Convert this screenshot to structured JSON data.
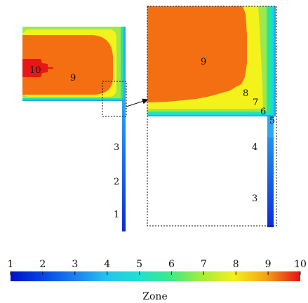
{
  "colors": {
    "z1": "#0a1fd2",
    "z2": "#0b55e6",
    "z3": "#1e7ce8",
    "z4": "#2aa9f2",
    "z5": "#16d9e6",
    "z6": "#23e79f",
    "z7": "#9fe84a",
    "z8": "#f4f21b",
    "z9": "#f5870f",
    "z10": "#e71717",
    "orange_core": "#f36f12"
  },
  "left_panel": {
    "labels": {
      "z10": "10",
      "z9": "9",
      "z3": "3",
      "z2": "2",
      "z1": "1"
    }
  },
  "right_panel": {
    "labels": {
      "z9": "9",
      "z8": "8",
      "z7": "7",
      "z6": "6",
      "z5": "5",
      "z4": "4",
      "z3": "3"
    }
  },
  "colorbar": {
    "ticks": [
      "1",
      "2",
      "3",
      "4",
      "5",
      "6",
      "7",
      "8",
      "9",
      "10"
    ],
    "label": "Zone"
  }
}
